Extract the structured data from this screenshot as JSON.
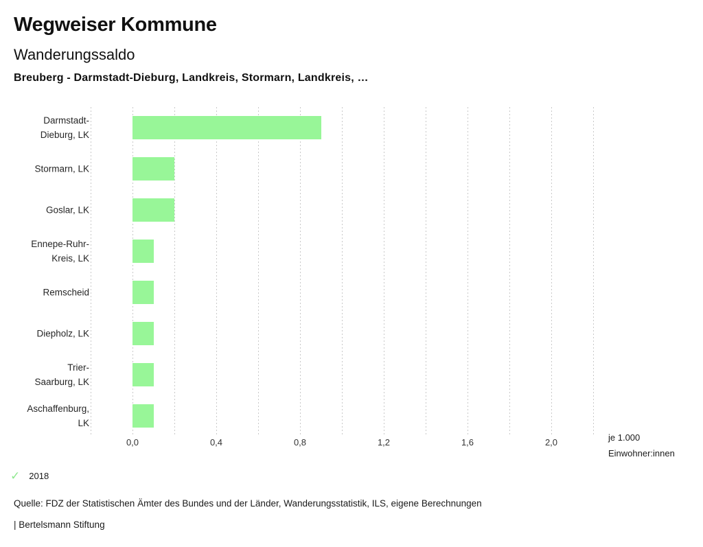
{
  "header": {
    "app_title": "Wegweiser Kommune",
    "chart_title": "Wanderungssaldo",
    "subtitle": "Breuberg - Darmstadt-Dieburg, Landkreis, Stormarn, Landkreis, …"
  },
  "chart_data": {
    "type": "bar",
    "orientation": "horizontal",
    "title": "Wanderungssaldo",
    "categories": [
      "Darmstadt-Dieburg, LK",
      "Stormarn, LK",
      "Goslar, LK",
      "Ennepe-Ruhr-Kreis, LK",
      "Remscheid",
      "Diepholz, LK",
      "Trier-Saarburg, LK",
      "Aschaffenburg, LK"
    ],
    "category_label_lines": [
      [
        "Darmstadt-",
        "Dieburg, LK"
      ],
      [
        "Stormarn, LK"
      ],
      [
        "Goslar, LK"
      ],
      [
        "Ennepe-Ruhr-",
        "Kreis, LK"
      ],
      [
        "Remscheid"
      ],
      [
        "Diepholz, LK"
      ],
      [
        "Trier-",
        "Saarburg, LK"
      ],
      [
        "Aschaffenburg,",
        "LK"
      ]
    ],
    "values": [
      0.9,
      0.2,
      0.2,
      0.1,
      0.1,
      0.1,
      0.1,
      0.1
    ],
    "series_year": "2018",
    "xlabel_lines": [
      "je 1.000",
      "Einwohner:innen"
    ],
    "axis": {
      "min": -0.2,
      "max": 2.2,
      "step": 0.2,
      "grid": true,
      "tick_labels": [
        {
          "value": 0.0,
          "label": "0,0"
        },
        {
          "value": 0.4,
          "label": "0,4"
        },
        {
          "value": 0.8,
          "label": "0,8"
        },
        {
          "value": 1.2,
          "label": "1,2"
        },
        {
          "value": 1.6,
          "label": "1,6"
        },
        {
          "value": 2.0,
          "label": "2,0"
        }
      ]
    },
    "legend_position": "bottom-left"
  },
  "legend": {
    "check_icon": "✓",
    "year": "2018"
  },
  "footer": {
    "source": "Quelle: FDZ der Statistischen Ämter des Bundes und der Länder, Wanderungsstatistik, ILS, eigene Berechnungen",
    "attribution": "| Bertelsmann Stiftung"
  },
  "colors": {
    "bar": "#98f698",
    "gridline": "#c8c8c8",
    "check": "#8fe88f",
    "text": "#1a1a1a"
  }
}
